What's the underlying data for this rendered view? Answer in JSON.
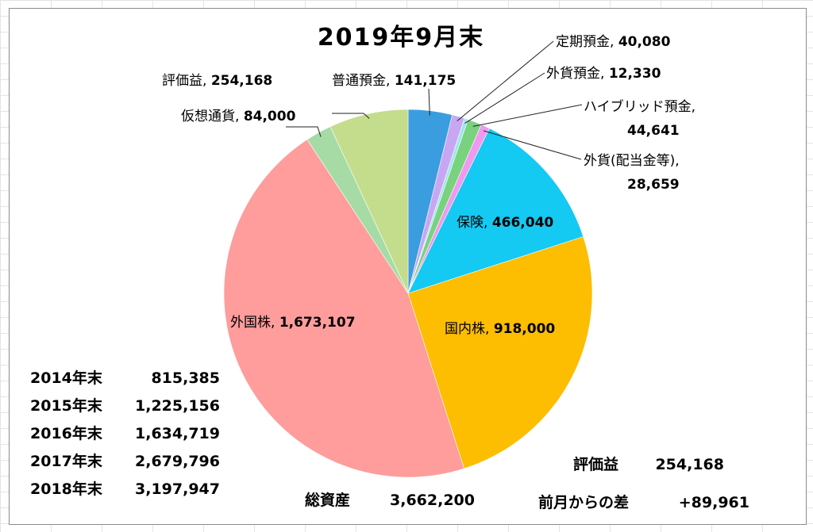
{
  "chart_data": {
    "type": "pie",
    "title": "2019年9月末",
    "slices": [
      {
        "label": "普通預金",
        "value": 141175,
        "value_text": "141,175",
        "color": "#3a9de0"
      },
      {
        "label": "定期預金",
        "value": 40080,
        "value_text": "40,080",
        "color": "#c9a6f2"
      },
      {
        "label": "外貨預金",
        "value": 12330,
        "value_text": "12,330",
        "color": "#9fe5ef"
      },
      {
        "label": "ハイブリッド預金",
        "value": 44641,
        "value_text": "44,641",
        "color": "#79d27e"
      },
      {
        "label": "外貨(配当金等)",
        "value": 28659,
        "value_text": "28,659",
        "color": "#ef9af0"
      },
      {
        "label": "保険",
        "value": 466040,
        "value_text": "466,040",
        "color": "#14c9f2"
      },
      {
        "label": "国内株",
        "value": 918000,
        "value_text": "918,000",
        "color": "#fdbd00"
      },
      {
        "label": "外国株",
        "value": 1673107,
        "value_text": "1,673,107",
        "color": "#ff9c9c"
      },
      {
        "label": "仮想通貨",
        "value": 84000,
        "value_text": "84,000",
        "color": "#a6dba6"
      },
      {
        "label": "評価益",
        "value": 254168,
        "value_text": "254,168",
        "color": "#c3dd8c"
      }
    ]
  },
  "history": [
    {
      "label": "2014年末",
      "value": "815,385"
    },
    {
      "label": "2015年末",
      "value": "1,225,156"
    },
    {
      "label": "2016年末",
      "value": "1,634,719"
    },
    {
      "label": "2017年末",
      "value": "2,679,796"
    },
    {
      "label": "2018年末",
      "value": "3,197,947"
    }
  ],
  "summary": {
    "total_label": "総資産",
    "total_value": "3,662,200",
    "gain_label": "評価益",
    "gain_value": "254,168",
    "diff_label": "前月からの差",
    "diff_value": "+89,961"
  }
}
